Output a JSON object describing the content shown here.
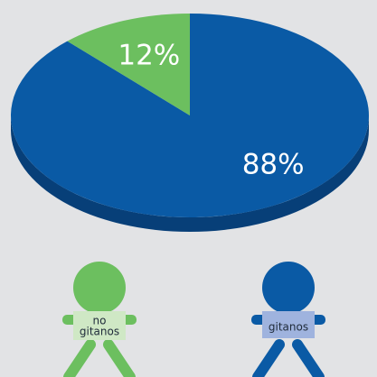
{
  "chart_data": {
    "type": "pie",
    "style": "3d",
    "slices": [
      {
        "label": "no gitanos",
        "value": 12,
        "display": "12%",
        "color": "#6cbf5f",
        "side_color": "#4e9a44"
      },
      {
        "label": "gitanos",
        "value": 88,
        "display": "88%",
        "color": "#0a5aa5",
        "side_color": "#073f78"
      }
    ],
    "title": "",
    "legend": "figures-below"
  },
  "figures": [
    {
      "sign_lines": [
        "no",
        "gitanos"
      ],
      "color": "#6cbf5f",
      "sign_color": "#cfe8c5"
    },
    {
      "sign_lines": [
        "gitanos"
      ],
      "color": "#0a5aa5",
      "sign_color": "#9fb3de"
    }
  ]
}
